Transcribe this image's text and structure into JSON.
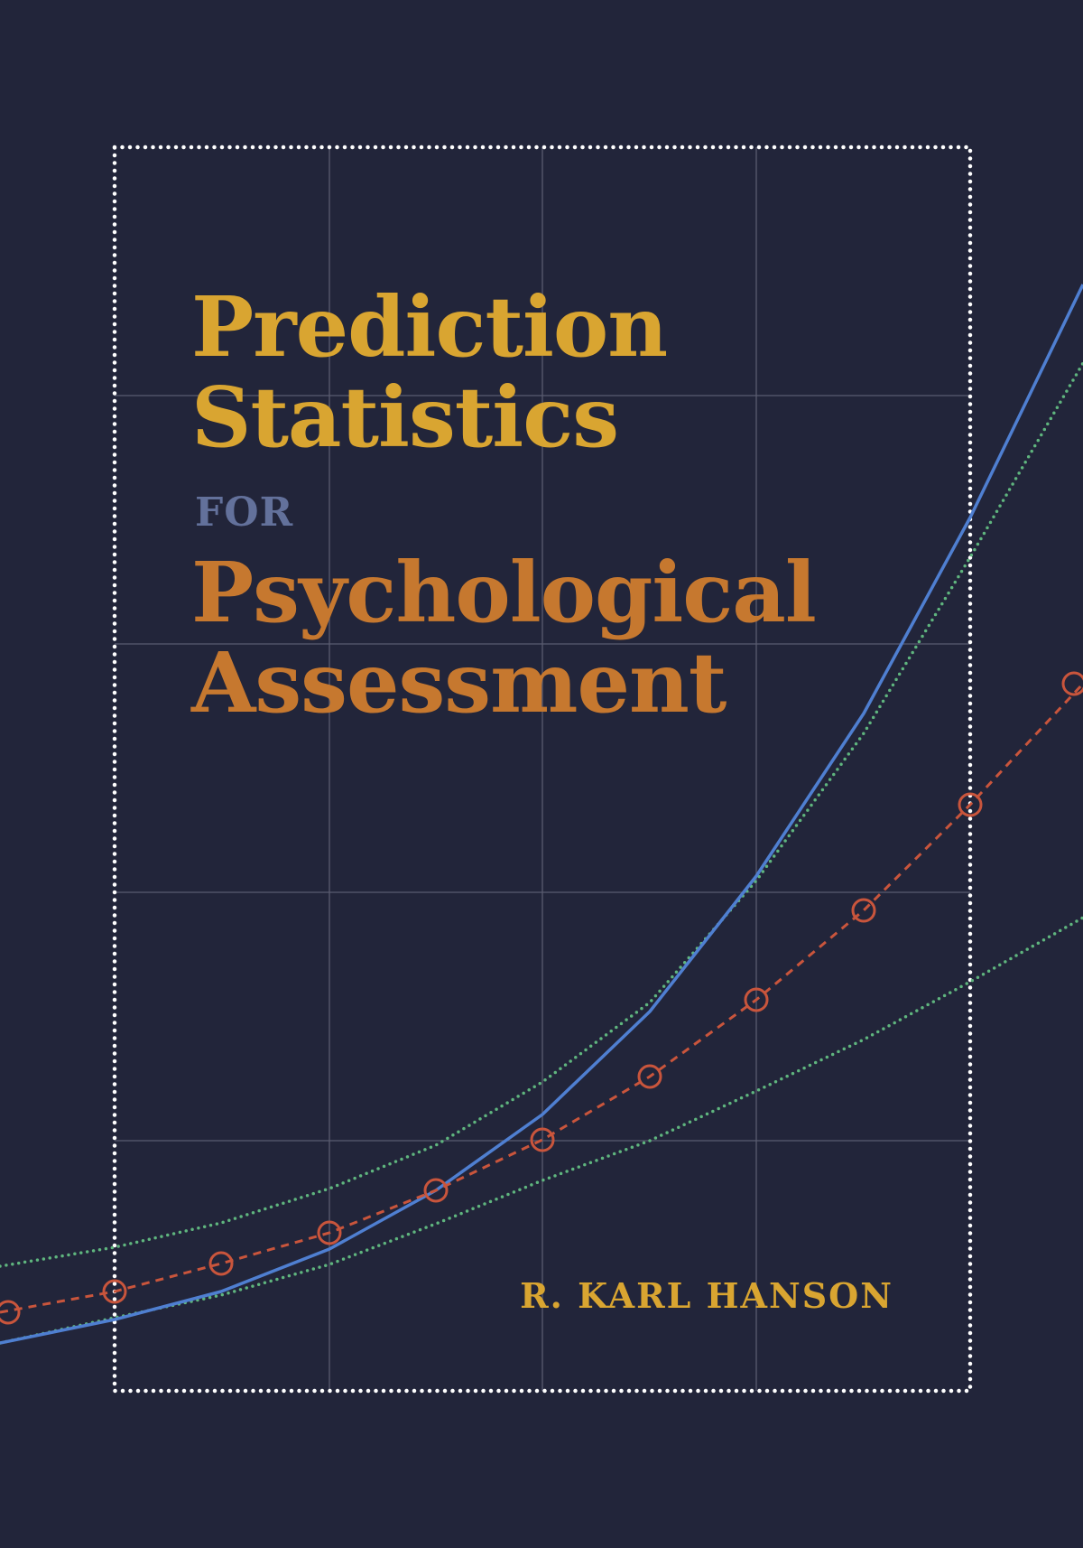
{
  "cover": {
    "title_line_1": "Prediction",
    "title_line_2": "Statistics",
    "title_for": "FOR",
    "title_line_3": "Psychological",
    "title_line_4": "Assessment",
    "author": "R. KARL HANSON"
  },
  "colors": {
    "background": "#22253a",
    "title_gold": "#d9a531",
    "title_orange": "#c6782f",
    "for_blue_gray": "#63719b",
    "curve_blue": "#4f7fd1",
    "curve_green": "#5fb57e",
    "curve_red": "#c9553c",
    "frame_dots": "#ffffff",
    "grid": "#5a5c70"
  },
  "decoration": {
    "icons": [
      "dotted-frame",
      "grid-lines",
      "solid-blue-curve",
      "dotted-green-curve-upper",
      "dotted-green-curve-lower",
      "dashed-red-curve-with-circle-markers"
    ]
  }
}
